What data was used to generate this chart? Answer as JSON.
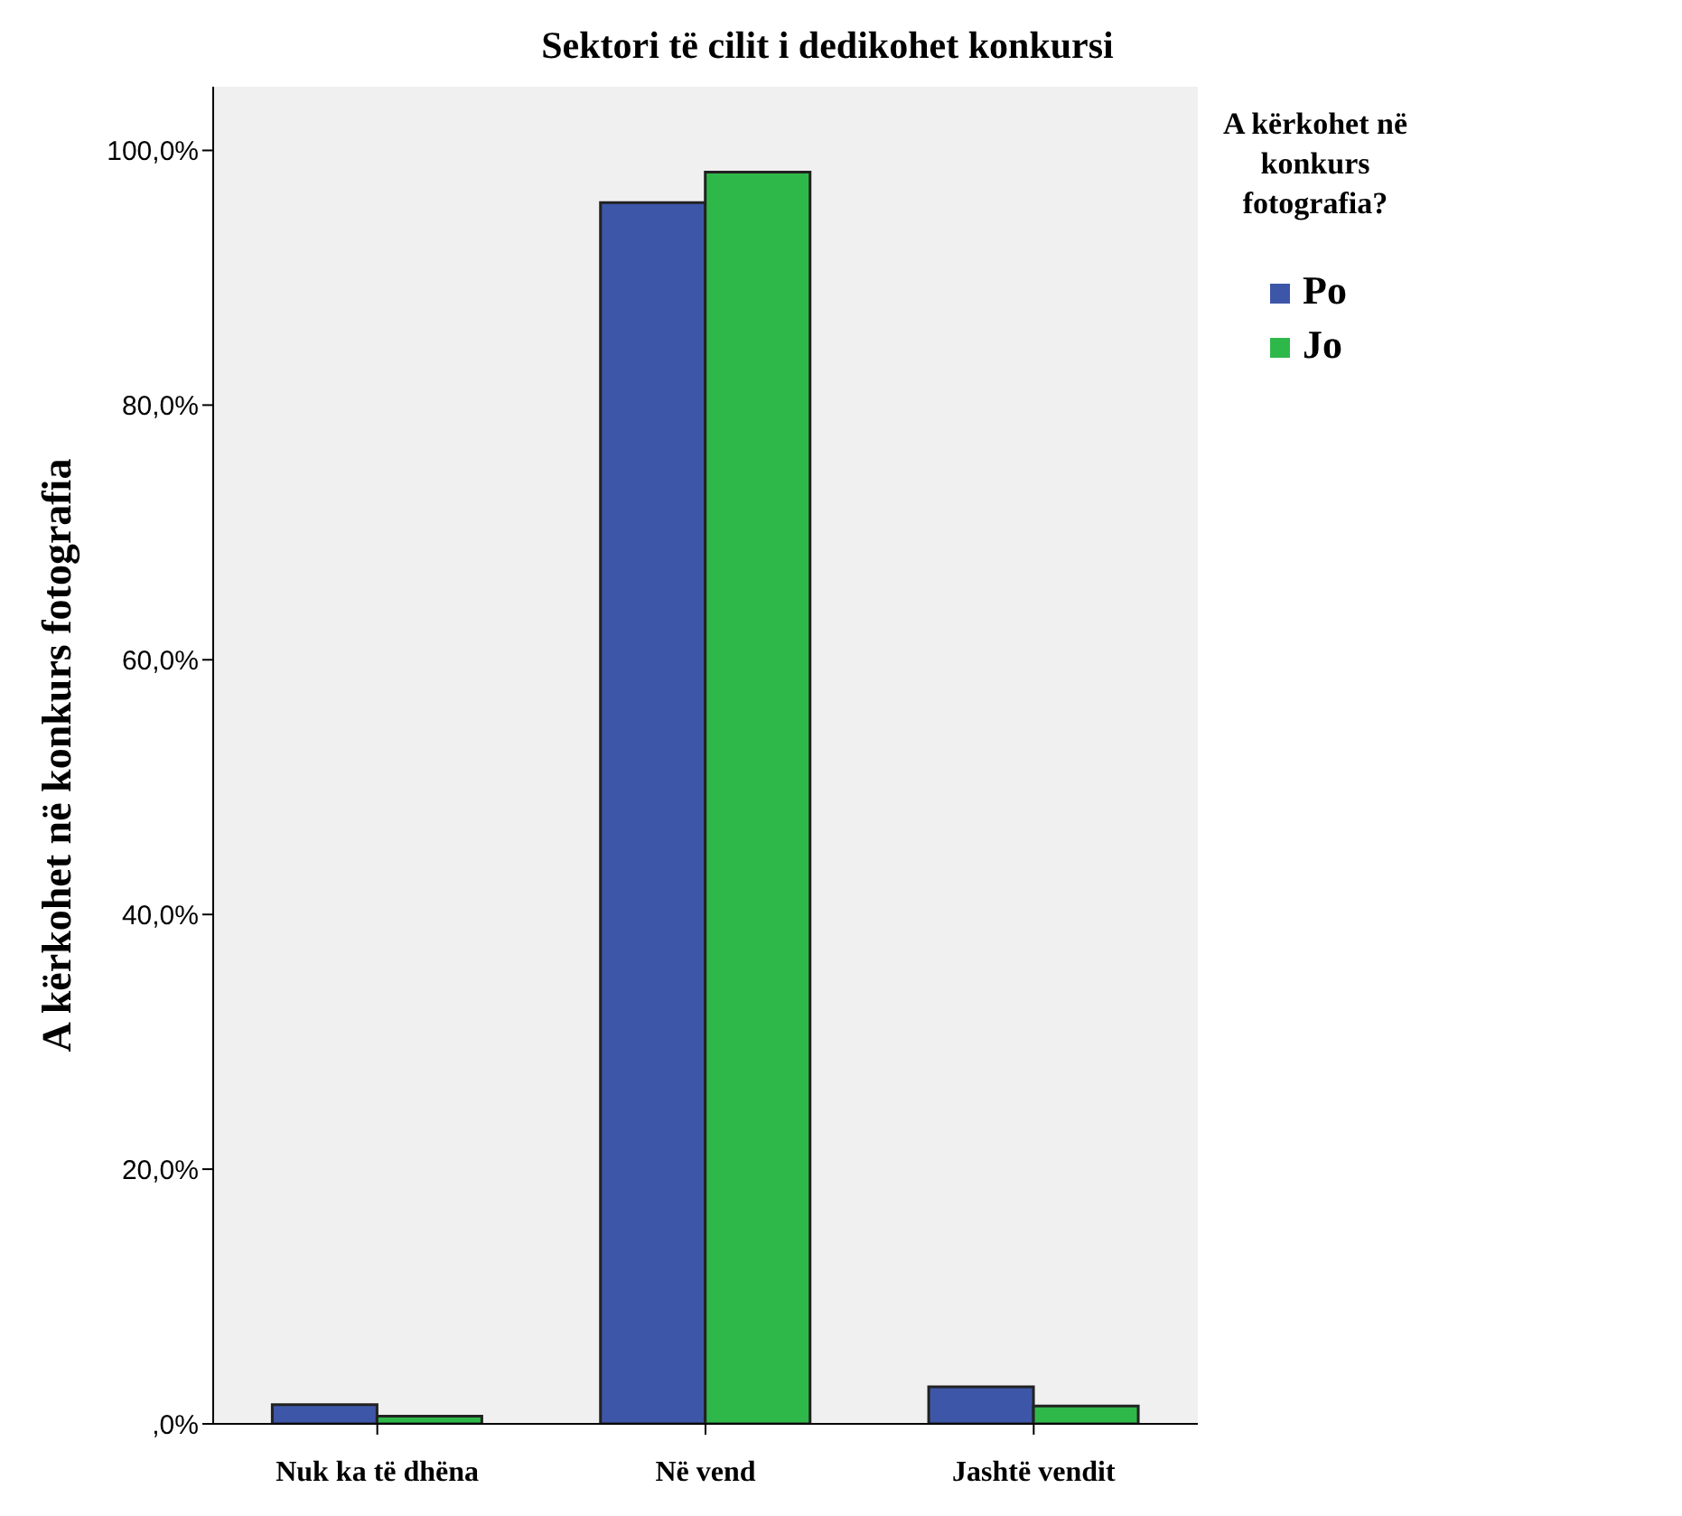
{
  "chart_data": {
    "type": "bar",
    "title": "Sektori të cilit i dedikohet konkursi",
    "ylabel": "A kërkohet në konkurs fotografia",
    "legend_title": "A kërkohet në konkurs fotografia?",
    "categories": [
      "Nuk ka të dhëna",
      "Në vend",
      "Jashtë vendit"
    ],
    "series": [
      {
        "name": "Po",
        "color": "#3d56a8",
        "values": [
          1.5,
          95.9,
          2.9
        ]
      },
      {
        "name": "Jo",
        "color": "#2fb84a",
        "values": [
          0.6,
          98.3,
          1.4
        ]
      }
    ],
    "ylim": [
      0,
      105
    ],
    "yticks": [
      {
        "value": 0,
        "label": ",0%"
      },
      {
        "value": 20,
        "label": "20,0%"
      },
      {
        "value": 40,
        "label": "40,0%"
      },
      {
        "value": 60,
        "label": "60,0%"
      },
      {
        "value": 80,
        "label": "80,0%"
      },
      {
        "value": 100,
        "label": "100,0%"
      }
    ],
    "legend": "top right"
  }
}
